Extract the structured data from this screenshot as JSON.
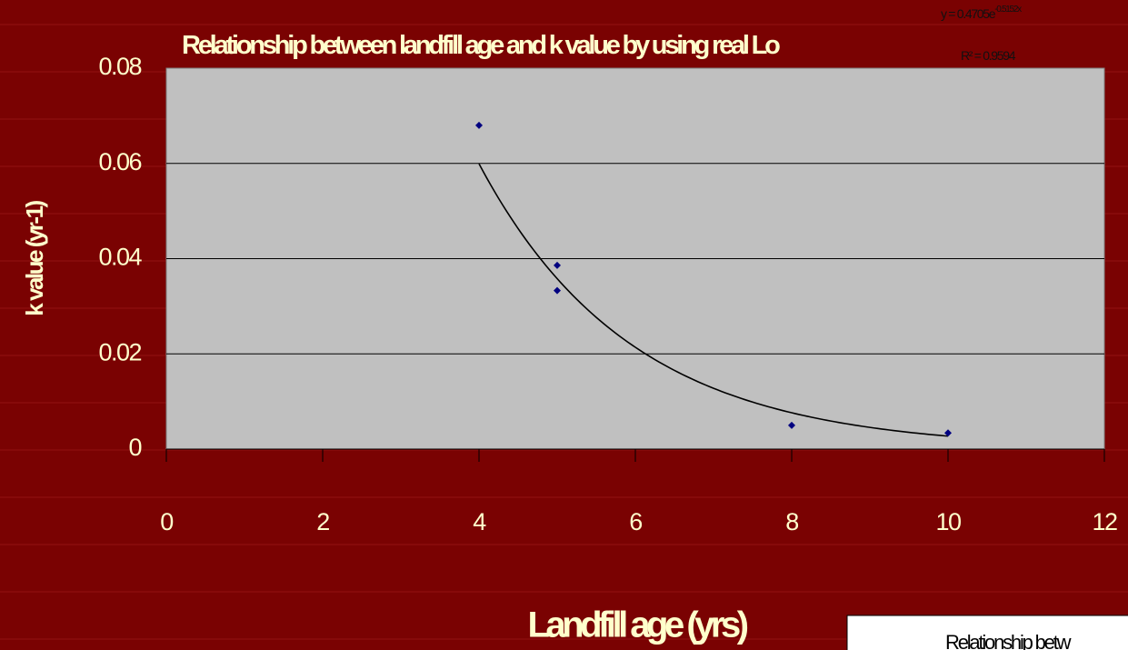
{
  "chart_data": {
    "type": "scatter",
    "title": "Relationship between landfill age and k value by using real Lo",
    "x_label": "Landfill age (yrs)",
    "y_label": "k value (yr-1)",
    "legend_text": "Relationship betw",
    "x": [
      4,
      5,
      5,
      8,
      10
    ],
    "values": [
      0.068,
      0.0386,
      0.0333,
      0.005,
      0.0034
    ],
    "color": "#000080",
    "xlim": [
      0,
      12
    ],
    "xticks": [
      0,
      2,
      4,
      6,
      8,
      10,
      12
    ],
    "ylim": [
      0,
      0.08
    ],
    "yticks": [
      0,
      0.02,
      0.04,
      0.06,
      0.08
    ],
    "grid": true,
    "trendline": {
      "kind": "exponential",
      "a": 0.4705,
      "b": -0.5152,
      "color": "#000000",
      "equation": "y = 0.4705e",
      "equation_exponent": "-0.5152x",
      "r_squared": "R² = 0.9594"
    }
  }
}
